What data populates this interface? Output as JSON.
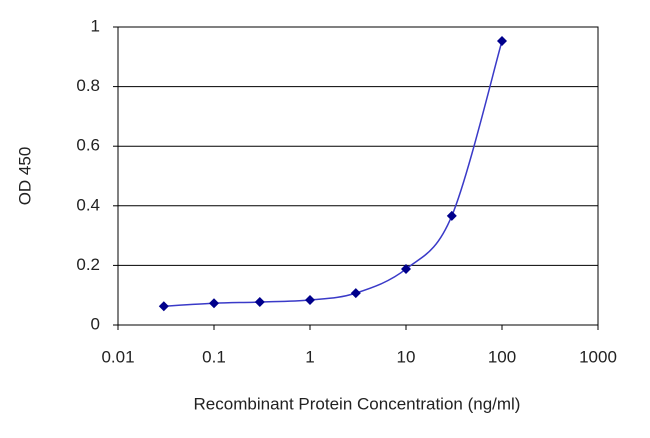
{
  "chart_data": {
    "type": "line",
    "x_label": "Recombinant Protein Concentration (ng/ml)",
    "y_label": "OD 450",
    "x": [
      0.03,
      0.1,
      0.3,
      1,
      3,
      10,
      30,
      100
    ],
    "values": [
      0.063,
      0.073,
      0.077,
      0.084,
      0.107,
      0.188,
      0.366,
      0.953
    ],
    "color": "#00008b",
    "xlog": true,
    "xlim": [
      0.01,
      1000
    ],
    "xticks": [
      0.01,
      0.1,
      1,
      10,
      100,
      1000
    ],
    "ylim": [
      0,
      1
    ],
    "yticks": [
      0,
      0.2,
      0.4,
      0.6,
      0.8,
      1
    ],
    "grid": true
  }
}
